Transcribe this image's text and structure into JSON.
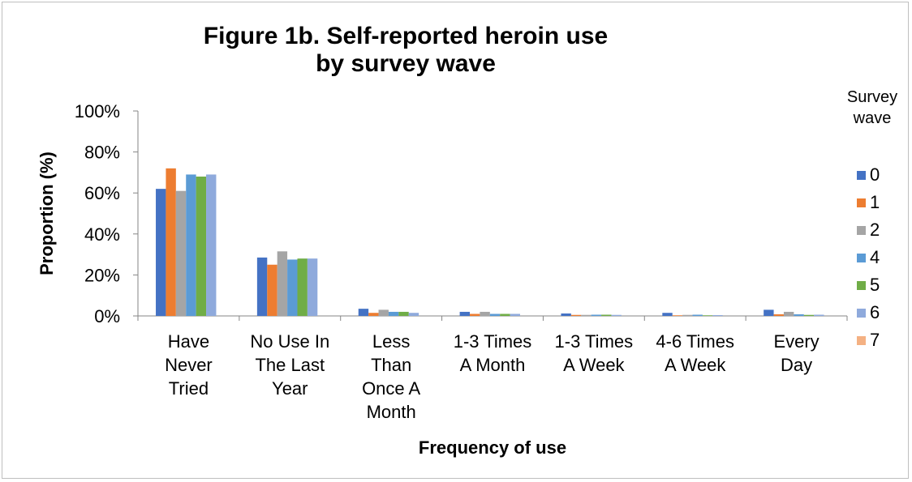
{
  "chart_data": {
    "type": "bar",
    "title": "Figure 1b. Self-reported heroin use",
    "title_line2": "by survey wave",
    "xlabel": "Frequency of use",
    "ylabel": "Proportion (%)",
    "ylim": [
      0,
      100
    ],
    "yticks": [
      "0%",
      "20%",
      "40%",
      "60%",
      "80%",
      "100%"
    ],
    "categories": [
      [
        "Have",
        "Never",
        "Tried"
      ],
      [
        "No Use In",
        "The Last",
        "Year"
      ],
      [
        "Less",
        "Than",
        "Once A",
        "Month"
      ],
      [
        "1-3 Times",
        "A Month"
      ],
      [
        "1-3 Times",
        "A Week"
      ],
      [
        "4-6 Times",
        "A Week"
      ],
      [
        "Every",
        "Day"
      ]
    ],
    "legend_title": [
      "Survey",
      "wave"
    ],
    "legend_position": "right",
    "series": [
      {
        "name": "0",
        "color": "#4472C4",
        "values": [
          62,
          28.5,
          3.5,
          2,
          1.2,
          1.5,
          3
        ]
      },
      {
        "name": "1",
        "color": "#ED7D31",
        "values": [
          72,
          25,
          1.5,
          1,
          0.5,
          0.3,
          0.8
        ]
      },
      {
        "name": "2",
        "color": "#A5A5A5",
        "values": [
          61,
          31.5,
          3,
          2,
          0.5,
          0.5,
          2
        ]
      },
      {
        "name": "4",
        "color": "#5B9BD5",
        "values": [
          69,
          27.5,
          2,
          1,
          0.6,
          0.6,
          0.8
        ]
      },
      {
        "name": "5",
        "color": "#70AD47",
        "values": [
          68,
          28,
          2,
          1,
          0.6,
          0.3,
          0.5
        ]
      },
      {
        "name": "6",
        "color": "#8FAADC",
        "values": [
          69,
          28,
          1.5,
          1,
          0.5,
          0.4,
          0.6
        ]
      },
      {
        "name": "7",
        "color": "#F4B183",
        "values": [
          0,
          0,
          0,
          0,
          0,
          0,
          0
        ]
      }
    ]
  }
}
